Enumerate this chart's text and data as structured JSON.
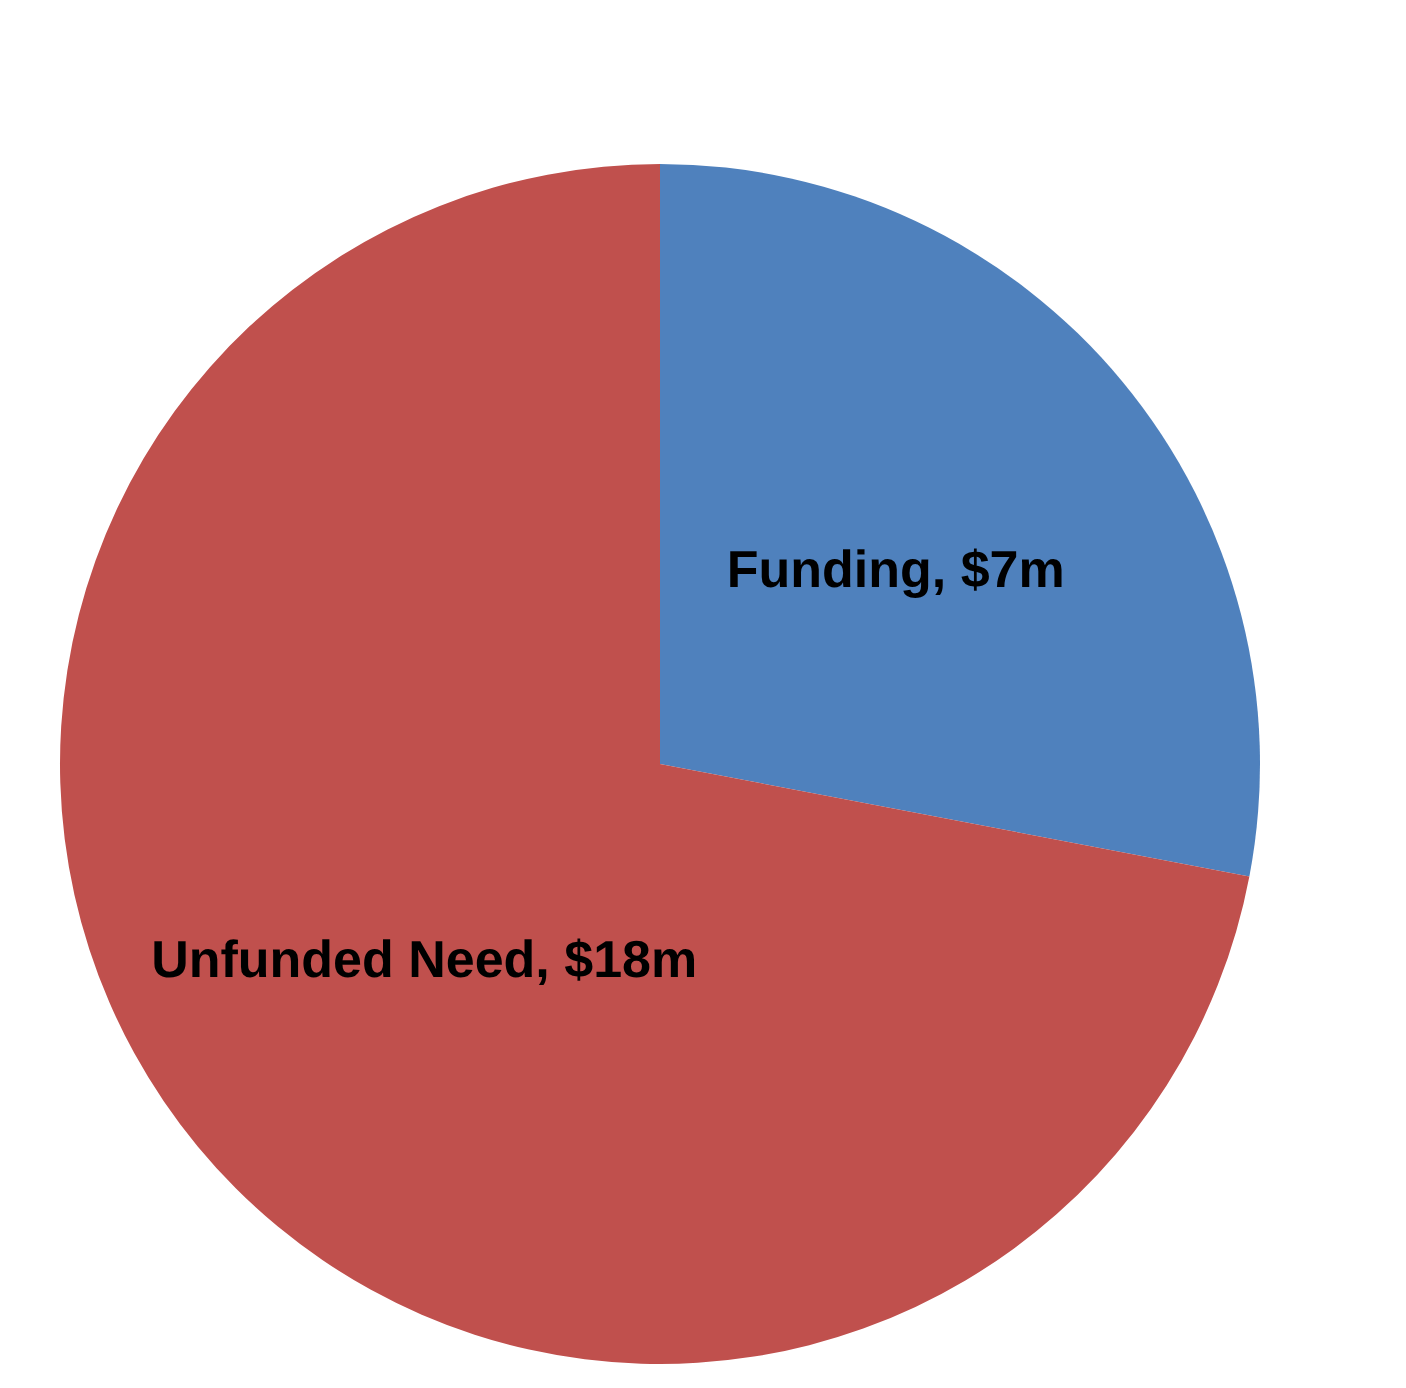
{
  "chart_data": {
    "type": "pie",
    "categories": [
      "Funding",
      "Unfunded Need"
    ],
    "values": [
      7,
      18
    ],
    "colors": [
      "#4f81bd",
      "#c0504d"
    ],
    "value_labels": [
      "$7m",
      "$18m"
    ]
  }
}
